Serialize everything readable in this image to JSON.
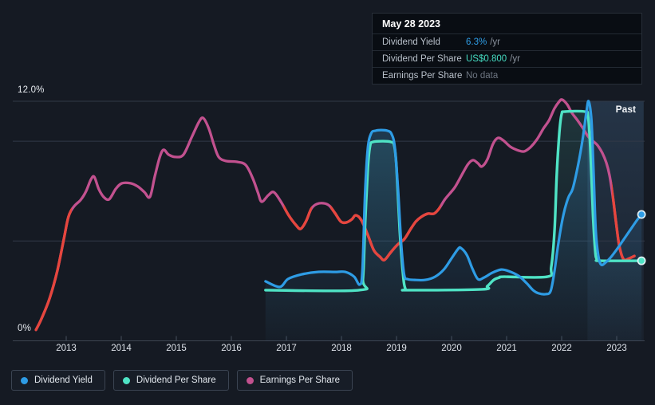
{
  "tooltip": {
    "date": "May 28 2023",
    "rows": [
      {
        "label": "Dividend Yield",
        "value": "6.3%",
        "unit": "/yr"
      },
      {
        "label": "Dividend Per Share",
        "value": "US$0.800",
        "unit": "/yr"
      },
      {
        "label": "Earnings Per Share",
        "value": "No data",
        "unit": ""
      }
    ]
  },
  "axis": {
    "y_top_label": "12.0%",
    "y_bottom_label": "0%",
    "years": [
      "2013",
      "2014",
      "2015",
      "2016",
      "2017",
      "2018",
      "2019",
      "2020",
      "2021",
      "2022",
      "2023"
    ]
  },
  "past_label": "Past",
  "legend": {
    "items": [
      {
        "label": "Dividend Yield",
        "color": "#2e9ce5"
      },
      {
        "label": "Dividend Per Share",
        "color": "#4fe3c5"
      },
      {
        "label": "Earnings Per Share",
        "color": "#c2518f"
      }
    ]
  },
  "chart_data": {
    "type": "line",
    "title": "Dividend history chart",
    "x_axis": {
      "unit": "year",
      "ticks": [
        2013,
        2014,
        2015,
        2016,
        2017,
        2018,
        2019,
        2020,
        2021,
        2022,
        2023
      ],
      "min": 2012.35,
      "max": 2023.55
    },
    "y_axis": {
      "unit": "percent",
      "min": 0,
      "max": 12,
      "gridlines_pct": [
        12,
        10,
        5,
        0
      ],
      "top_label": "12.0%",
      "bottom_label": "0%"
    },
    "highlight_band": {
      "from_year": 2022.47,
      "to_year": 2023.49
    },
    "colors": {
      "yield": "#2e9ce5",
      "dps": "#4fe3c5",
      "eps": "#c2518f",
      "eps_red": "#e6463d"
    },
    "series": [
      {
        "name": "Dividend Yield",
        "color": "#2e9ce5",
        "area": "blue",
        "end_dot": true,
        "points": [
          [
            2016.62,
            2.98
          ],
          [
            2016.88,
            2.7
          ],
          [
            2017.03,
            3.1
          ],
          [
            2017.28,
            3.33
          ],
          [
            2017.57,
            3.45
          ],
          [
            2017.88,
            3.45
          ],
          [
            2018.07,
            3.45
          ],
          [
            2018.23,
            3.21
          ],
          [
            2018.33,
            2.82
          ],
          [
            2018.38,
            3.49
          ],
          [
            2018.43,
            7.49
          ],
          [
            2018.48,
            9.68
          ],
          [
            2018.54,
            10.4
          ],
          [
            2018.61,
            10.52
          ],
          [
            2018.72,
            10.56
          ],
          [
            2018.84,
            10.52
          ],
          [
            2018.91,
            10.36
          ],
          [
            2018.97,
            9.68
          ],
          [
            2019.03,
            7.49
          ],
          [
            2019.09,
            4.69
          ],
          [
            2019.14,
            3.29
          ],
          [
            2019.2,
            3.09
          ],
          [
            2019.33,
            3.05
          ],
          [
            2019.52,
            3.05
          ],
          [
            2019.7,
            3.21
          ],
          [
            2019.86,
            3.57
          ],
          [
            2020.0,
            4.13
          ],
          [
            2020.12,
            4.61
          ],
          [
            2020.17,
            4.65
          ],
          [
            2020.28,
            4.29
          ],
          [
            2020.38,
            3.61
          ],
          [
            2020.48,
            3.09
          ],
          [
            2020.59,
            3.17
          ],
          [
            2020.74,
            3.41
          ],
          [
            2020.9,
            3.57
          ],
          [
            2021.04,
            3.49
          ],
          [
            2021.22,
            3.25
          ],
          [
            2021.36,
            2.9
          ],
          [
            2021.48,
            2.54
          ],
          [
            2021.58,
            2.38
          ],
          [
            2021.71,
            2.34
          ],
          [
            2021.8,
            2.5
          ],
          [
            2021.87,
            3.49
          ],
          [
            2021.94,
            4.89
          ],
          [
            2022.03,
            6.29
          ],
          [
            2022.12,
            7.17
          ],
          [
            2022.2,
            7.61
          ],
          [
            2022.29,
            8.69
          ],
          [
            2022.38,
            10.08
          ],
          [
            2022.45,
            11.48
          ],
          [
            2022.49,
            12.0
          ],
          [
            2022.54,
            11.08
          ],
          [
            2022.58,
            8.49
          ],
          [
            2022.62,
            5.49
          ],
          [
            2022.67,
            4.21
          ],
          [
            2022.72,
            3.81
          ],
          [
            2022.8,
            3.93
          ],
          [
            2022.9,
            4.21
          ],
          [
            2023.04,
            4.73
          ],
          [
            2023.2,
            5.37
          ],
          [
            2023.35,
            5.97
          ],
          [
            2023.45,
            6.33
          ]
        ]
      },
      {
        "name": "Dividend Per Share",
        "color": "#4fe3c5",
        "area": "teal",
        "end_dot": true,
        "points": [
          [
            2016.62,
            2.54
          ],
          [
            2018.32,
            2.54
          ],
          [
            2018.39,
            3.1
          ],
          [
            2018.43,
            5.89
          ],
          [
            2018.48,
            8.69
          ],
          [
            2018.52,
            9.77
          ],
          [
            2018.57,
            9.96
          ],
          [
            2018.75,
            10.0
          ],
          [
            2018.9,
            9.96
          ],
          [
            2018.96,
            9.77
          ],
          [
            2019.0,
            8.69
          ],
          [
            2019.06,
            5.49
          ],
          [
            2019.12,
            3.29
          ],
          [
            2019.16,
            2.62
          ],
          [
            2019.22,
            2.54
          ],
          [
            2020.55,
            2.58
          ],
          [
            2020.65,
            2.74
          ],
          [
            2020.77,
            3.06
          ],
          [
            2020.87,
            3.17
          ],
          [
            2020.96,
            3.21
          ],
          [
            2021.74,
            3.21
          ],
          [
            2021.81,
            3.69
          ],
          [
            2021.87,
            5.49
          ],
          [
            2021.91,
            8.29
          ],
          [
            2021.96,
            10.48
          ],
          [
            2022.0,
            11.36
          ],
          [
            2022.06,
            11.48
          ],
          [
            2022.42,
            11.48
          ],
          [
            2022.48,
            11.24
          ],
          [
            2022.52,
            9.68
          ],
          [
            2022.57,
            6.29
          ],
          [
            2022.61,
            4.49
          ],
          [
            2022.64,
            4.09
          ],
          [
            2022.7,
            4.01
          ],
          [
            2023.45,
            4.01
          ]
        ]
      },
      {
        "name": "Earnings Per Share",
        "color": "#c2518f",
        "red_color": "#e6463d",
        "red_ranges": [
          [
            2012.4,
            2013.1
          ],
          [
            2016.95,
            2017.46
          ],
          [
            2017.8,
            2019.8
          ],
          [
            2022.91,
            2023.45
          ]
        ],
        "points": [
          [
            2012.45,
            0.55
          ],
          [
            2012.55,
            1.1
          ],
          [
            2012.7,
            2.14
          ],
          [
            2012.84,
            3.53
          ],
          [
            2012.96,
            5.13
          ],
          [
            2013.04,
            6.21
          ],
          [
            2013.14,
            6.73
          ],
          [
            2013.26,
            7.05
          ],
          [
            2013.36,
            7.49
          ],
          [
            2013.45,
            8.09
          ],
          [
            2013.51,
            8.21
          ],
          [
            2013.59,
            7.61
          ],
          [
            2013.68,
            7.21
          ],
          [
            2013.78,
            7.09
          ],
          [
            2013.9,
            7.61
          ],
          [
            2014.01,
            7.89
          ],
          [
            2014.17,
            7.89
          ],
          [
            2014.3,
            7.73
          ],
          [
            2014.42,
            7.45
          ],
          [
            2014.52,
            7.21
          ],
          [
            2014.61,
            8.25
          ],
          [
            2014.7,
            9.21
          ],
          [
            2014.77,
            9.57
          ],
          [
            2014.86,
            9.33
          ],
          [
            2014.99,
            9.21
          ],
          [
            2015.13,
            9.33
          ],
          [
            2015.28,
            10.2
          ],
          [
            2015.41,
            10.96
          ],
          [
            2015.49,
            11.16
          ],
          [
            2015.59,
            10.64
          ],
          [
            2015.68,
            9.85
          ],
          [
            2015.77,
            9.21
          ],
          [
            2015.9,
            9.01
          ],
          [
            2016.09,
            8.97
          ],
          [
            2016.26,
            8.81
          ],
          [
            2016.39,
            8.13
          ],
          [
            2016.48,
            7.45
          ],
          [
            2016.55,
            6.97
          ],
          [
            2016.67,
            7.29
          ],
          [
            2016.77,
            7.45
          ],
          [
            2016.9,
            6.97
          ],
          [
            2017.04,
            6.29
          ],
          [
            2017.17,
            5.81
          ],
          [
            2017.26,
            5.61
          ],
          [
            2017.36,
            6.01
          ],
          [
            2017.45,
            6.61
          ],
          [
            2017.55,
            6.85
          ],
          [
            2017.68,
            6.89
          ],
          [
            2017.78,
            6.77
          ],
          [
            2017.88,
            6.41
          ],
          [
            2017.99,
            5.97
          ],
          [
            2018.09,
            5.93
          ],
          [
            2018.19,
            6.09
          ],
          [
            2018.26,
            6.29
          ],
          [
            2018.36,
            6.05
          ],
          [
            2018.48,
            5.29
          ],
          [
            2018.59,
            4.53
          ],
          [
            2018.7,
            4.21
          ],
          [
            2018.78,
            4.05
          ],
          [
            2018.9,
            4.45
          ],
          [
            2019.03,
            4.85
          ],
          [
            2019.14,
            5.09
          ],
          [
            2019.26,
            5.61
          ],
          [
            2019.35,
            5.97
          ],
          [
            2019.45,
            6.21
          ],
          [
            2019.57,
            6.37
          ],
          [
            2019.68,
            6.37
          ],
          [
            2019.77,
            6.61
          ],
          [
            2019.88,
            7.09
          ],
          [
            2019.99,
            7.45
          ],
          [
            2020.07,
            7.73
          ],
          [
            2020.19,
            8.33
          ],
          [
            2020.3,
            8.85
          ],
          [
            2020.39,
            9.05
          ],
          [
            2020.48,
            8.89
          ],
          [
            2020.55,
            8.73
          ],
          [
            2020.65,
            9.09
          ],
          [
            2020.75,
            9.85
          ],
          [
            2020.84,
            10.16
          ],
          [
            2020.94,
            10.04
          ],
          [
            2021.07,
            9.72
          ],
          [
            2021.22,
            9.53
          ],
          [
            2021.32,
            9.49
          ],
          [
            2021.43,
            9.69
          ],
          [
            2021.55,
            10.08
          ],
          [
            2021.67,
            10.64
          ],
          [
            2021.77,
            11.04
          ],
          [
            2021.87,
            11.64
          ],
          [
            2021.96,
            12.0
          ],
          [
            2022.01,
            12.08
          ],
          [
            2022.1,
            11.84
          ],
          [
            2022.19,
            11.4
          ],
          [
            2022.28,
            11.08
          ],
          [
            2022.38,
            10.68
          ],
          [
            2022.48,
            10.24
          ],
          [
            2022.57,
            10.0
          ],
          [
            2022.65,
            9.8
          ],
          [
            2022.74,
            9.4
          ],
          [
            2022.81,
            8.93
          ],
          [
            2022.87,
            8.29
          ],
          [
            2022.93,
            7.21
          ],
          [
            2022.99,
            5.89
          ],
          [
            2023.04,
            4.85
          ],
          [
            2023.09,
            4.29
          ],
          [
            2023.14,
            4.05
          ],
          [
            2023.23,
            4.13
          ],
          [
            2023.32,
            4.25
          ]
        ]
      }
    ]
  }
}
